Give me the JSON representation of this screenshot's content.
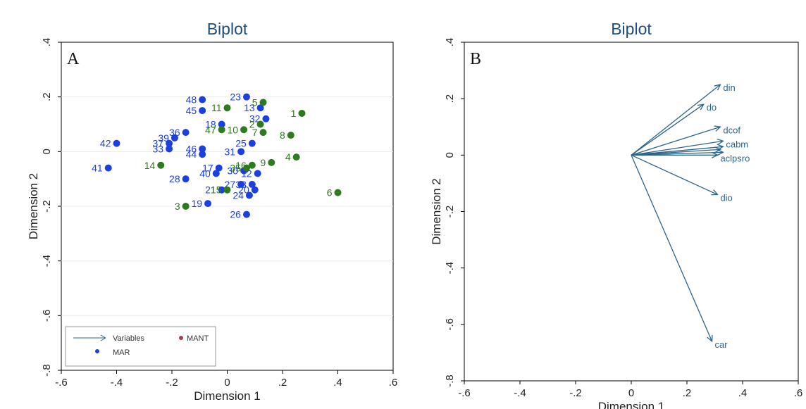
{
  "chart_data": [
    {
      "type": "scatter",
      "title": "Biplot",
      "panel_label": "A",
      "xlabel": "Dimension 1",
      "ylabel": "Dimension 2",
      "xlim": [
        -0.6,
        0.6
      ],
      "ylim": [
        -0.8,
        0.4
      ],
      "xticks": [
        "-.6",
        "-.4",
        "-.2",
        "0",
        ".2",
        ".4",
        ".6"
      ],
      "yticks": [
        ".4",
        ".2",
        "0",
        "-.2",
        "-.4",
        "-.6",
        "-.8"
      ],
      "grid": true,
      "legend_position": "bottom-left",
      "legend": [
        {
          "label": "Variables",
          "symbol": "arrow",
          "color": "#2d6388"
        },
        {
          "label": "MANT",
          "symbol": "dot",
          "color": "#a83e50"
        },
        {
          "label": "MAR",
          "symbol": "dot",
          "color": "#1c3fe0"
        }
      ],
      "series": [
        {
          "color": "#1c3fe0",
          "points": [
            {
              "label": "48",
              "x": -0.09,
              "y": 0.19
            },
            {
              "label": "45",
              "x": -0.09,
              "y": 0.15
            },
            {
              "label": "23",
              "x": 0.07,
              "y": 0.2
            },
            {
              "label": "18",
              "x": -0.02,
              "y": 0.1
            },
            {
              "label": "13",
              "x": 0.12,
              "y": 0.16
            },
            {
              "label": "32",
              "x": 0.14,
              "y": 0.12
            },
            {
              "label": "36",
              "x": -0.15,
              "y": 0.07
            },
            {
              "label": "39",
              "x": -0.19,
              "y": 0.05
            },
            {
              "label": "42",
              "x": -0.4,
              "y": 0.03
            },
            {
              "label": "37",
              "x": -0.21,
              "y": 0.03
            },
            {
              "label": "33",
              "x": -0.21,
              "y": 0.01
            },
            {
              "label": "46",
              "x": -0.09,
              "y": 0.01
            },
            {
              "label": "44",
              "x": -0.09,
              "y": -0.01
            },
            {
              "label": "25",
              "x": 0.09,
              "y": 0.03
            },
            {
              "label": "31",
              "x": 0.05,
              "y": 0.0
            },
            {
              "label": "41",
              "x": -0.43,
              "y": -0.06
            },
            {
              "label": "17",
              "x": -0.03,
              "y": -0.06
            },
            {
              "label": "40",
              "x": -0.04,
              "y": -0.08
            },
            {
              "label": "28",
              "x": -0.15,
              "y": -0.1
            },
            {
              "label": "30",
              "x": 0.06,
              "y": -0.07
            },
            {
              "label": "12",
              "x": 0.11,
              "y": -0.08
            },
            {
              "label": "38",
              "x": 0.09,
              "y": -0.12
            },
            {
              "label": "27",
              "x": 0.05,
              "y": -0.12
            },
            {
              "label": "20",
              "x": 0.1,
              "y": -0.14
            },
            {
              "label": "24",
              "x": 0.08,
              "y": -0.16
            },
            {
              "label": "21",
              "x": -0.02,
              "y": -0.14
            },
            {
              "label": "19",
              "x": -0.07,
              "y": -0.19
            },
            {
              "label": "26",
              "x": 0.07,
              "y": -0.23
            }
          ]
        },
        {
          "color": "#2e7a1e",
          "points": [
            {
              "label": "1",
              "x": 0.27,
              "y": 0.14
            },
            {
              "label": "5",
              "x": 0.13,
              "y": 0.18
            },
            {
              "label": "11",
              "x": 0.0,
              "y": 0.16
            },
            {
              "label": "2",
              "x": 0.12,
              "y": 0.1
            },
            {
              "label": "10",
              "x": 0.06,
              "y": 0.08
            },
            {
              "label": "47",
              "x": -0.02,
              "y": 0.08
            },
            {
              "label": "8",
              "x": 0.23,
              "y": 0.06
            },
            {
              "label": "7",
              "x": 0.13,
              "y": 0.07
            },
            {
              "label": "4",
              "x": 0.25,
              "y": -0.02
            },
            {
              "label": "9",
              "x": 0.16,
              "y": -0.04
            },
            {
              "label": "14",
              "x": -0.24,
              "y": -0.05
            },
            {
              "label": "16",
              "x": 0.09,
              "y": -0.05
            },
            {
              "label": "35",
              "x": 0.07,
              "y": -0.06
            },
            {
              "label": "15",
              "x": 0.0,
              "y": -0.14
            },
            {
              "label": "6",
              "x": 0.4,
              "y": -0.15
            },
            {
              "label": "3",
              "x": -0.15,
              "y": -0.2
            }
          ]
        }
      ]
    },
    {
      "type": "vector-biplot",
      "title": "Biplot",
      "panel_label": "B",
      "xlabel": "Dimension 1",
      "ylabel": "Dimension 2",
      "xlim": [
        -0.6,
        0.6
      ],
      "ylim": [
        -0.8,
        0.4
      ],
      "xticks": [
        "-.6",
        "-.4",
        "-.2",
        "0",
        ".2",
        ".4",
        ".6"
      ],
      "yticks": [
        ".4",
        ".2",
        "0",
        "-.2",
        "-.4",
        "-.6",
        "-.8"
      ],
      "grid": false,
      "color": "#2d6388",
      "vectors": [
        {
          "label": "din",
          "x": 0.32,
          "y": 0.25
        },
        {
          "label": "do",
          "x": 0.26,
          "y": 0.18
        },
        {
          "label": "dcof",
          "x": 0.32,
          "y": 0.1
        },
        {
          "label": "cabm",
          "x": 0.33,
          "y": 0.05
        },
        {
          "label": "",
          "x": 0.33,
          "y": 0.03
        },
        {
          "label": "",
          "x": 0.32,
          "y": 0.02
        },
        {
          "label": "",
          "x": 0.33,
          "y": 0.01
        },
        {
          "label": "aclpsro",
          "x": 0.31,
          "y": 0.0
        },
        {
          "label": "dio",
          "x": 0.31,
          "y": -0.14
        },
        {
          "label": "car",
          "x": 0.29,
          "y": -0.66
        }
      ]
    }
  ]
}
